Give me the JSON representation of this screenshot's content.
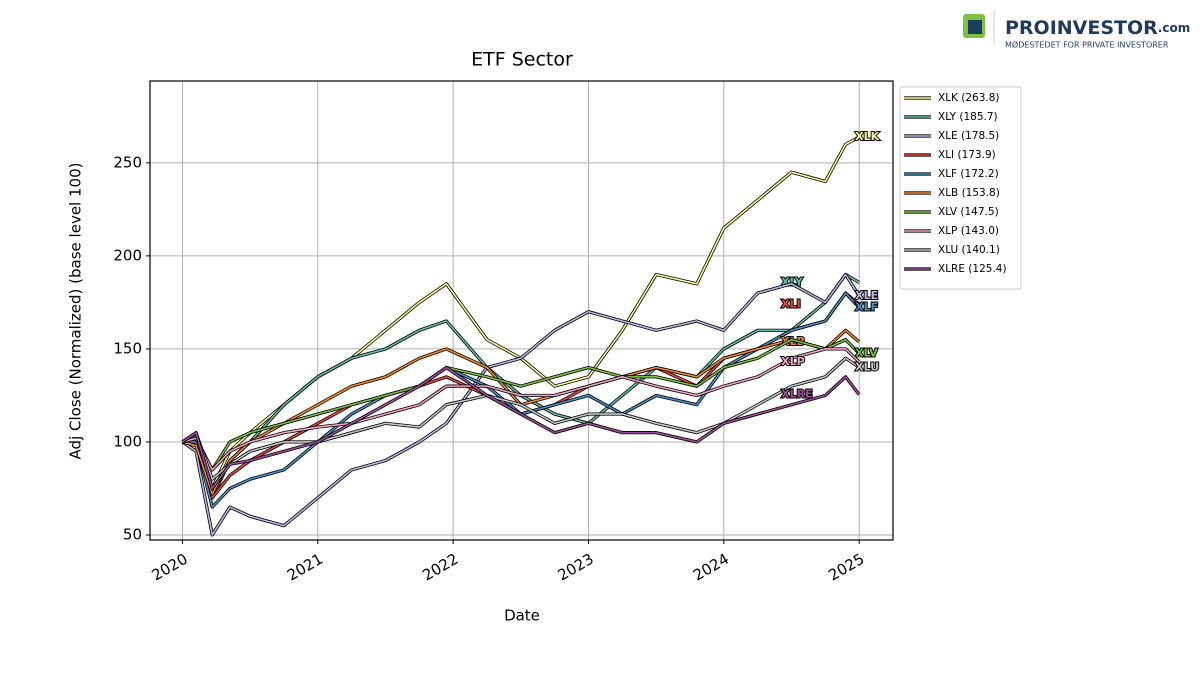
{
  "logo": {
    "name": "PROINVESTOR",
    "suffix": ".com",
    "tagline": "MØDESTEDET FOR PRIVATE INVESTORER"
  },
  "chart_data": {
    "type": "line",
    "title": "ETF Sector",
    "xlabel": "Date",
    "ylabel": "Adj Close (Normalized) (base level 100)",
    "x": [
      2020,
      2020.1,
      2020.22,
      2020.35,
      2020.5,
      2020.75,
      2021,
      2021.25,
      2021.5,
      2021.75,
      2021.95,
      2022.25,
      2022.5,
      2022.75,
      2023,
      2023.25,
      2023.5,
      2023.8,
      2024,
      2024.25,
      2024.5,
      2024.75,
      2024.9,
      2025
    ],
    "xlim": [
      2019.76,
      2025.25
    ],
    "xticks": [
      2020,
      2021,
      2022,
      2023,
      2024,
      2025
    ],
    "ylim": [
      47.3,
      294
    ],
    "yticks": [
      50,
      100,
      150,
      200,
      250
    ],
    "grid": true,
    "legend": "outside upper right",
    "series": [
      {
        "name": "XLK (263.8)",
        "label": "XLK",
        "color": "#ffff99",
        "values": [
          100,
          104,
          75,
          95,
          105,
          120,
          135,
          145,
          160,
          175,
          185,
          155,
          145,
          130,
          135,
          160,
          190,
          185,
          215,
          230,
          245,
          240,
          260,
          263.8
        ]
      },
      {
        "name": "XLY (185.7)",
        "label": "XLY",
        "color": "#66c2a5",
        "values": [
          100,
          103,
          70,
          90,
          100,
          120,
          135,
          145,
          150,
          160,
          165,
          140,
          125,
          115,
          110,
          125,
          140,
          135,
          150,
          160,
          160,
          175,
          190,
          185.7
        ]
      },
      {
        "name": "XLE (178.5)",
        "label": "XLE",
        "color": "#b8b8e8",
        "values": [
          100,
          95,
          50,
          65,
          60,
          55,
          70,
          85,
          90,
          100,
          110,
          140,
          145,
          160,
          170,
          165,
          160,
          165,
          160,
          180,
          185,
          175,
          190,
          178.5
        ]
      },
      {
        "name": "XLI (173.9)",
        "label": "XLI",
        "color": "#e8473f",
        "values": [
          100,
          102,
          70,
          82,
          90,
          100,
          110,
          120,
          125,
          130,
          135,
          125,
          115,
          120,
          130,
          135,
          140,
          130,
          145,
          150,
          160,
          165,
          180,
          173.9
        ]
      },
      {
        "name": "XLF (172.2)",
        "label": "XLF",
        "color": "#4f8ec9",
        "values": [
          100,
          100,
          65,
          75,
          80,
          85,
          100,
          115,
          125,
          130,
          140,
          130,
          115,
          120,
          125,
          115,
          125,
          120,
          140,
          150,
          160,
          165,
          180,
          172.2
        ]
      },
      {
        "name": "XLB (153.8)",
        "label": "XLB",
        "color": "#f58a2b",
        "values": [
          100,
          98,
          72,
          90,
          100,
          110,
          120,
          130,
          135,
          145,
          150,
          140,
          120,
          125,
          130,
          135,
          140,
          135,
          145,
          150,
          155,
          150,
          160,
          153.8
        ]
      },
      {
        "name": "XLV (147.5)",
        "label": "XLV",
        "color": "#7cc242",
        "values": [
          100,
          102,
          85,
          100,
          105,
          110,
          115,
          120,
          125,
          130,
          140,
          135,
          130,
          135,
          140,
          135,
          135,
          130,
          140,
          145,
          155,
          150,
          155,
          147.5
        ]
      },
      {
        "name": "XLP (143.0)",
        "label": "XLP",
        "color": "#f4a6c8",
        "values": [
          100,
          102,
          85,
          95,
          100,
          105,
          108,
          110,
          115,
          120,
          130,
          130,
          125,
          125,
          130,
          135,
          130,
          125,
          130,
          135,
          145,
          150,
          150,
          143.0
        ]
      },
      {
        "name": "XLU (140.1)",
        "label": "XLU",
        "color": "#c8c8c8",
        "values": [
          100,
          105,
          80,
          88,
          95,
          100,
          100,
          105,
          110,
          108,
          120,
          125,
          120,
          110,
          115,
          115,
          110,
          105,
          110,
          120,
          130,
          135,
          145,
          140.1
        ]
      },
      {
        "name": "XLRE (125.4)",
        "label": "XLRE",
        "color": "#9b4f9b",
        "values": [
          100,
          105,
          75,
          88,
          90,
          95,
          100,
          110,
          120,
          130,
          140,
          125,
          115,
          105,
          110,
          105,
          105,
          100,
          110,
          115,
          120,
          125,
          135,
          125.4
        ]
      }
    ]
  }
}
